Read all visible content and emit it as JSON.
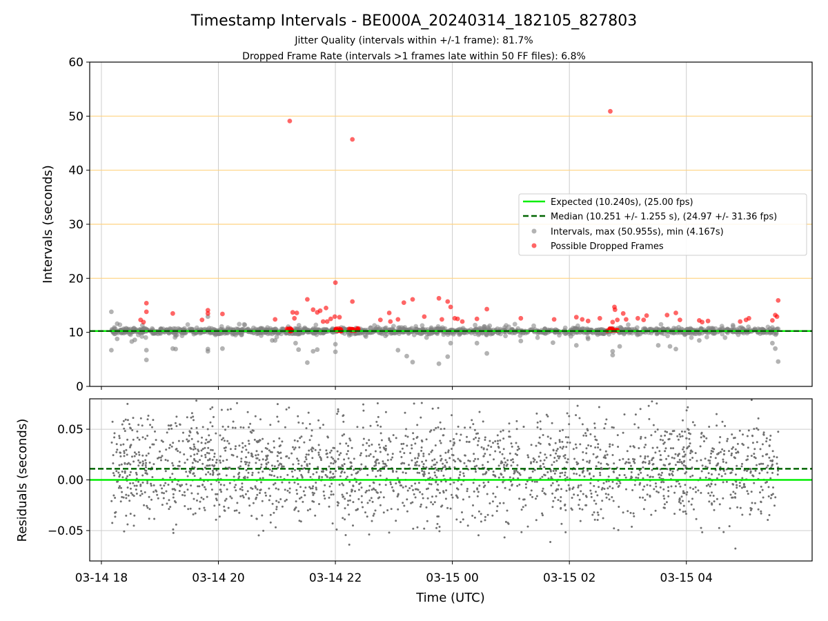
{
  "title": "Timestamp Intervals - BE000A_20240314_182105_827803",
  "subtitle_1": "Jitter Quality (intervals within +/-1 frame): 81.7%",
  "subtitle_2": "Dropped Frame Rate (intervals >1 frames late within 50 FF files): 6.8%",
  "colors": {
    "expected": "#00ee00",
    "median": "#006400",
    "intervals": "#808080",
    "dropped": "#ff0000",
    "threshold_lines": "#ffd27f",
    "grid": "#cccccc",
    "residual_points": "#707070"
  },
  "chart_data": [
    {
      "type": "scatter",
      "panel": "top",
      "ylabel": "Intervals (seconds)",
      "xlabel": "",
      "ylim": [
        0,
        60
      ],
      "yticks": [
        "0",
        "10",
        "20",
        "30",
        "40",
        "50",
        "60"
      ],
      "xtick_labels": [
        "03-14 18",
        "03-14 20",
        "03-14 22",
        "03-15 00",
        "03-15 02",
        "03-15 04"
      ],
      "x_range_hours_from_0314_1800": [
        -0.2,
        12.15
      ],
      "grid": "vertical",
      "horizontal_reference_lines": [
        20,
        30,
        40,
        50
      ],
      "expected_interval": 10.24,
      "median_interval": 10.251,
      "legend": {
        "placement": "center-right",
        "entries": [
          "Expected (10.240s), (25.00 fps)",
          "Median (10.251 +/- 1.255 s), (24.97 +/- 31.36 fps)",
          "Intervals, max (50.955s), min (4.167s)",
          "Possible Dropped Frames"
        ]
      },
      "series": [
        {
          "name": "Possible Dropped Frames",
          "points_hours_seconds": [
            [
              0.67,
              12.3
            ],
            [
              0.72,
              11.9
            ],
            [
              0.77,
              15.4
            ],
            [
              0.77,
              13.8
            ],
            [
              1.22,
              13.5
            ],
            [
              1.72,
              12.3
            ],
            [
              1.82,
              14.1
            ],
            [
              1.82,
              13.5
            ],
            [
              2.07,
              13.4
            ],
            [
              2.97,
              12.4
            ],
            [
              3.22,
              49.1
            ],
            [
              3.27,
              13.7
            ],
            [
              3.3,
              12.6
            ],
            [
              3.34,
              13.6
            ],
            [
              3.52,
              16.1
            ],
            [
              3.62,
              14.2
            ],
            [
              3.69,
              13.7
            ],
            [
              3.74,
              14.0
            ],
            [
              3.79,
              12.0
            ],
            [
              3.84,
              14.5
            ],
            [
              3.86,
              12.0
            ],
            [
              3.92,
              12.5
            ],
            [
              3.99,
              12.9
            ],
            [
              4.0,
              19.2
            ],
            [
              4.07,
              12.8
            ],
            [
              4.29,
              45.7
            ],
            [
              4.29,
              15.7
            ],
            [
              4.77,
              12.3
            ],
            [
              4.92,
              13.6
            ],
            [
              4.94,
              12.0
            ],
            [
              5.07,
              12.4
            ],
            [
              5.17,
              15.5
            ],
            [
              5.32,
              16.1
            ],
            [
              5.52,
              12.9
            ],
            [
              5.77,
              16.3
            ],
            [
              5.82,
              12.4
            ],
            [
              5.92,
              15.7
            ],
            [
              5.97,
              14.7
            ],
            [
              6.04,
              12.6
            ],
            [
              6.09,
              12.5
            ],
            [
              6.17,
              12.0
            ],
            [
              6.42,
              12.5
            ],
            [
              6.59,
              14.3
            ],
            [
              7.17,
              12.6
            ],
            [
              7.74,
              12.4
            ],
            [
              8.12,
              12.8
            ],
            [
              8.22,
              12.4
            ],
            [
              8.32,
              12.1
            ],
            [
              8.52,
              12.6
            ],
            [
              8.7,
              50.9
            ],
            [
              8.74,
              11.9
            ],
            [
              8.77,
              14.7
            ],
            [
              8.78,
              14.2
            ],
            [
              8.82,
              12.3
            ],
            [
              8.92,
              13.5
            ],
            [
              8.97,
              12.4
            ],
            [
              9.17,
              12.6
            ],
            [
              9.27,
              12.3
            ],
            [
              9.32,
              13.1
            ],
            [
              9.67,
              13.2
            ],
            [
              9.82,
              13.6
            ],
            [
              9.89,
              12.3
            ],
            [
              10.22,
              12.2
            ],
            [
              10.27,
              11.9
            ],
            [
              10.37,
              12.1
            ],
            [
              10.92,
              12.0
            ],
            [
              11.02,
              12.3
            ],
            [
              11.07,
              12.6
            ],
            [
              11.47,
              12.2
            ],
            [
              11.52,
              13.2
            ],
            [
              11.55,
              12.9
            ],
            [
              11.57,
              15.9
            ]
          ],
          "clusters_near_expected_hours": [
            [
              3.17,
              3.27
            ],
            [
              4.0,
              4.1
            ],
            [
              4.2,
              4.4
            ],
            [
              8.63,
              8.83
            ]
          ]
        },
        {
          "name": "Intervals, max (50.955s), min (4.167s)",
          "x_span_hours": [
            0.17,
            11.57
          ],
          "typical_range_seconds": [
            9.6,
            11.0
          ],
          "outliers_points_hours_seconds": [
            [
              0.17,
              13.8
            ],
            [
              0.17,
              6.7
            ],
            [
              0.27,
              11.6
            ],
            [
              0.27,
              8.8
            ],
            [
              0.52,
              8.3
            ],
            [
              0.57,
              8.6
            ],
            [
              0.77,
              6.7
            ],
            [
              0.77,
              4.9
            ],
            [
              1.22,
              7.0
            ],
            [
              1.27,
              6.9
            ],
            [
              1.82,
              12.9
            ],
            [
              1.82,
              6.9
            ],
            [
              1.82,
              6.5
            ],
            [
              2.07,
              7.0
            ],
            [
              2.97,
              8.5
            ],
            [
              3.32,
              8.0
            ],
            [
              3.37,
              6.8
            ],
            [
              3.52,
              4.4
            ],
            [
              3.62,
              6.5
            ],
            [
              3.69,
              6.8
            ],
            [
              4.0,
              6.4
            ],
            [
              4.0,
              7.8
            ],
            [
              5.07,
              6.7
            ],
            [
              5.22,
              5.6
            ],
            [
              5.32,
              4.5
            ],
            [
              5.77,
              4.2
            ],
            [
              5.92,
              5.5
            ],
            [
              5.97,
              8.0
            ],
            [
              6.42,
              8.0
            ],
            [
              6.59,
              6.1
            ],
            [
              8.12,
              7.6
            ],
            [
              8.32,
              8.8
            ],
            [
              8.74,
              6.5
            ],
            [
              8.74,
              5.8
            ],
            [
              8.86,
              7.4
            ],
            [
              9.52,
              7.6
            ],
            [
              9.72,
              7.4
            ],
            [
              9.82,
              6.9
            ],
            [
              10.22,
              8.5
            ],
            [
              11.52,
              7.0
            ],
            [
              11.57,
              4.6
            ],
            [
              11.47,
              8.0
            ],
            [
              7.72,
              8.1
            ],
            [
              7.17,
              8.4
            ],
            [
              2.92,
              8.5
            ]
          ]
        },
        {
          "name": "Expected (10.240s), (25.00 fps)",
          "value": 10.24
        },
        {
          "name": "Median (10.251 +/- 1.255 s), (24.97 +/- 31.36 fps)",
          "value": 10.251
        }
      ]
    },
    {
      "type": "scatter",
      "panel": "bottom",
      "ylabel": "Residuals (seconds)",
      "xlabel": "Time (UTC)",
      "ylim": [
        -0.08,
        0.08
      ],
      "yticks": [
        "−0.05",
        "0.00",
        "0.05"
      ],
      "ytick_values": [
        -0.05,
        0.0,
        0.05
      ],
      "xtick_labels": [
        "03-14 18",
        "03-14 20",
        "03-14 22",
        "03-15 00",
        "03-15 02",
        "03-15 04"
      ],
      "grid": "both",
      "reference_lines": {
        "expected": 0.0,
        "median": 0.011
      },
      "series": [
        {
          "name": "Residuals",
          "x_span_hours": [
            0.17,
            11.57
          ],
          "approx_point_count": 2300,
          "typical_range_seconds": [
            -0.06,
            0.08
          ],
          "center_seconds": 0.011
        }
      ]
    }
  ]
}
